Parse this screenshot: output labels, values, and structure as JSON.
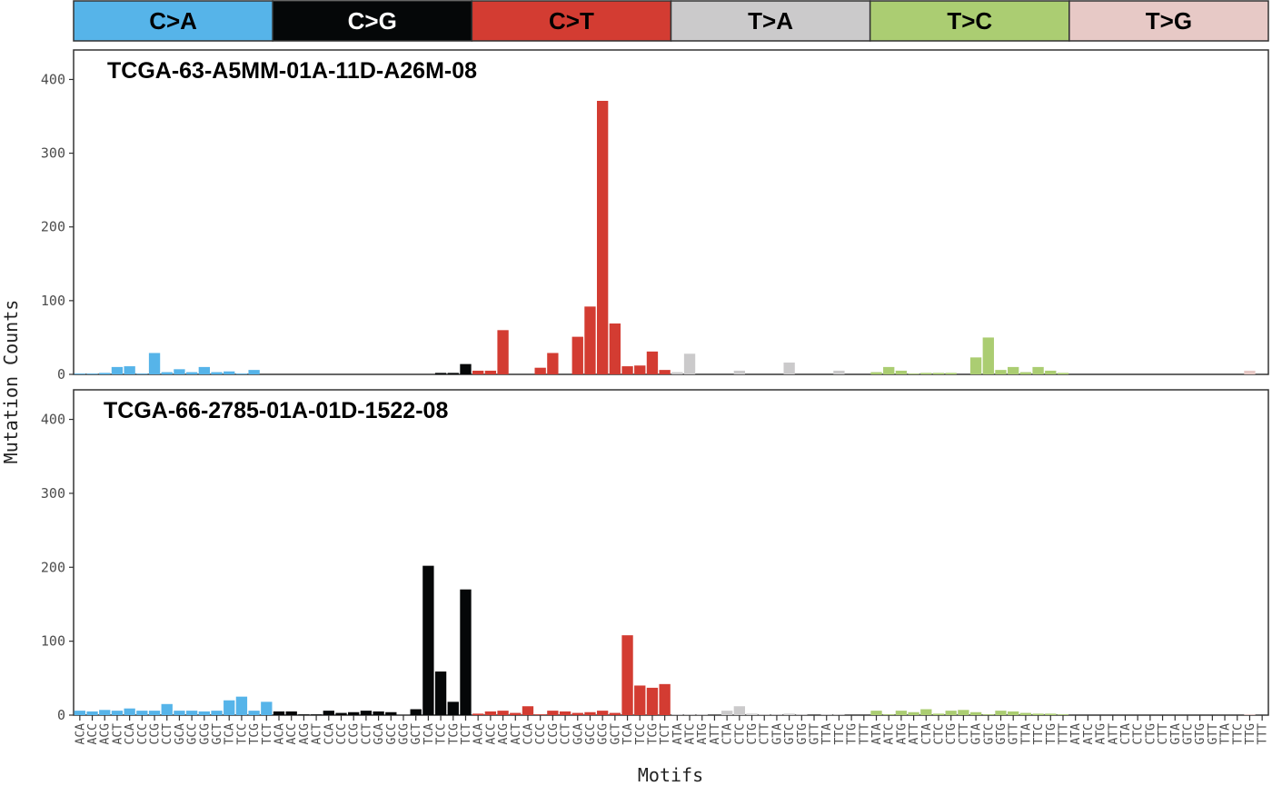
{
  "chart_data": {
    "type": "bar",
    "ylabel": "Mutation Counts",
    "xlabel": "Motifs",
    "ylim": [
      0,
      440
    ],
    "yticks": [
      0,
      100,
      200,
      300,
      400
    ],
    "grid": false,
    "facet_strips": [
      {
        "label": "C>A",
        "color": "#56b4e9",
        "text_color": "#000000"
      },
      {
        "label": "C>G",
        "color": "#050708",
        "text_color": "#ffffff"
      },
      {
        "label": "C>T",
        "color": "#d33c32",
        "text_color": "#000000"
      },
      {
        "label": "T>A",
        "color": "#cbcacb",
        "text_color": "#000000"
      },
      {
        "label": "T>C",
        "color": "#abcd72",
        "text_color": "#000000"
      },
      {
        "label": "T>G",
        "color": "#e7c9c6",
        "text_color": "#000000"
      }
    ],
    "motifs": [
      "ACA",
      "ACC",
      "ACG",
      "ACT",
      "CCA",
      "CCC",
      "CCG",
      "CCT",
      "GCA",
      "GCC",
      "GCG",
      "GCT",
      "TCA",
      "TCC",
      "TCG",
      "TCT"
    ],
    "motifs_t": [
      "ATA",
      "ATC",
      "ATG",
      "ATT",
      "CTA",
      "CTC",
      "CTG",
      "CTT",
      "GTA",
      "GTC",
      "GTG",
      "GTT",
      "TTA",
      "TTC",
      "TTG",
      "TTT"
    ],
    "panels": [
      {
        "title": "TCGA-63-A5MM-01A-11D-A26M-08",
        "values": [
          [
            1,
            1,
            2,
            10,
            11,
            1,
            29,
            3,
            7,
            3,
            10,
            3,
            4,
            1,
            6,
            0
          ],
          [
            0,
            0,
            0,
            0,
            0,
            0,
            0,
            0,
            0,
            0,
            0,
            0,
            0,
            2,
            2,
            14
          ],
          [
            5,
            5,
            60,
            0,
            0,
            9,
            29,
            0,
            51,
            92,
            371,
            69,
            11,
            12,
            31,
            6
          ],
          [
            3,
            28,
            0,
            0,
            0,
            5,
            0,
            0,
            0,
            16,
            0,
            0,
            0,
            5,
            0,
            0
          ],
          [
            3,
            10,
            5,
            1,
            2,
            2,
            2,
            0,
            23,
            50,
            6,
            10,
            3,
            10,
            5,
            2
          ],
          [
            0,
            0,
            0,
            0,
            0,
            0,
            0,
            0,
            0,
            0,
            0,
            0,
            0,
            0,
            5,
            0
          ]
        ]
      },
      {
        "title": "TCGA-66-2785-01A-01D-1522-08",
        "values": [
          [
            6,
            5,
            7,
            6,
            9,
            6,
            6,
            15,
            6,
            6,
            5,
            6,
            20,
            25,
            6,
            18
          ],
          [
            5,
            5,
            1,
            1,
            6,
            3,
            4,
            6,
            5,
            4,
            0,
            8,
            202,
            59,
            18,
            170
          ],
          [
            2,
            5,
            6,
            3,
            12,
            1,
            6,
            5,
            3,
            4,
            6,
            3,
            108,
            40,
            37,
            42
          ],
          [
            1,
            1,
            1,
            0,
            6,
            12,
            2,
            1,
            1,
            2,
            1,
            0,
            1,
            1,
            0,
            0
          ],
          [
            6,
            1,
            6,
            4,
            8,
            2,
            6,
            7,
            4,
            1,
            6,
            5,
            3,
            2,
            2,
            1
          ],
          [
            0,
            0,
            0,
            0,
            0,
            0,
            0,
            0,
            0,
            0,
            0,
            0,
            0,
            0,
            1,
            0
          ]
        ]
      }
    ]
  }
}
